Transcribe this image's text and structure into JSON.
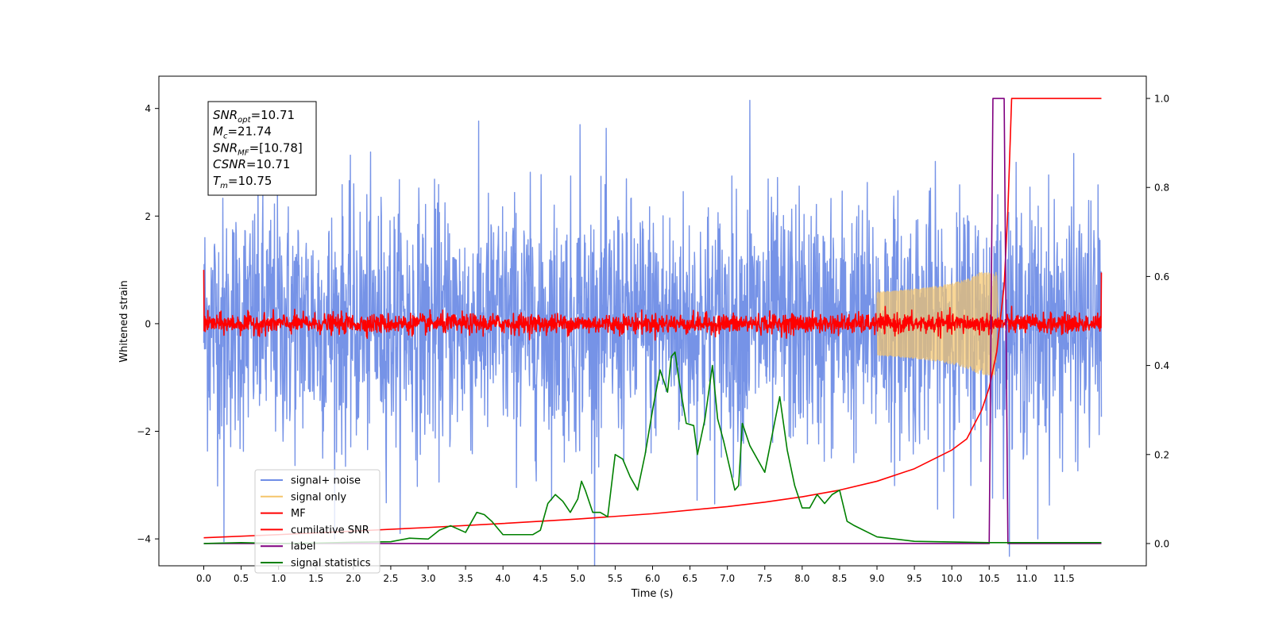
{
  "chart_data": {
    "type": "line",
    "xlabel": "Time (s)",
    "ylabel": "Whitened strain",
    "xlim": [
      -0.6,
      12.6
    ],
    "ylim": [
      -4.5,
      4.6
    ],
    "y2lim": [
      -0.05,
      1.05
    ],
    "x_ticks": [
      "0.0",
      "0.5",
      "1.0",
      "1.5",
      "2.0",
      "2.5",
      "3.0",
      "3.5",
      "4.0",
      "4.5",
      "5.0",
      "5.5",
      "6.0",
      "6.5",
      "7.0",
      "7.5",
      "8.0",
      "8.5",
      "9.0",
      "9.5",
      "10.0",
      "10.5",
      "11.0",
      "11.5"
    ],
    "y_ticks": [
      "4",
      "2",
      "0",
      "−2",
      "−4"
    ],
    "y2_ticks": [
      "1.0",
      "0.8",
      "0.6",
      "0.4",
      "0.2",
      "0.0"
    ],
    "grid": false,
    "legend_position": "lower-left",
    "annotation": {
      "lines": [
        {
          "sym": "SNR",
          "sub": "opt",
          "value": "=10.71"
        },
        {
          "sym": "M",
          "sub": "c",
          "value": "=21.74"
        },
        {
          "sym": "SNR",
          "sub": "MF",
          "value": "=[10.78]"
        },
        {
          "sym": "CSNR",
          "sub": "",
          "value": "=10.71"
        },
        {
          "sym": "T",
          "sub": "m",
          "value": "=10.75"
        }
      ]
    },
    "series": [
      {
        "name": "signal+ noise",
        "color": "#6f8de6",
        "axis": "left",
        "kind": "noise",
        "x_range": [
          0,
          12
        ],
        "std": 1.15,
        "notable_peaks": [
          [
            7.3,
            4.15
          ],
          [
            5.03,
            3.7
          ],
          [
            0.27,
            -4.05
          ],
          [
            11.15,
            -4.0
          ]
        ]
      },
      {
        "name": "signal only",
        "color": "#f5c56a",
        "axis": "left",
        "kind": "chirp",
        "peak_time": 10.6,
        "peak_amplitude": 0.95
      },
      {
        "name": "MF",
        "color": "#ff0000",
        "axis": "left",
        "kind": "noise",
        "x_range": [
          0,
          12
        ],
        "std": 0.09,
        "edge_values": [
          1.0,
          0.95
        ]
      },
      {
        "name": "cumilative SNR",
        "color": "#ff0000",
        "axis": "right",
        "x": [
          0.0,
          1.0,
          2.0,
          3.0,
          4.0,
          5.0,
          6.0,
          7.0,
          7.5,
          8.0,
          8.5,
          9.0,
          9.5,
          10.0,
          10.2,
          10.4,
          10.5,
          10.6,
          10.7,
          10.75,
          10.8,
          12.0
        ],
        "y": [
          0.013,
          0.02,
          0.028,
          0.036,
          0.045,
          0.055,
          0.067,
          0.083,
          0.093,
          0.105,
          0.12,
          0.14,
          0.168,
          0.21,
          0.235,
          0.3,
          0.35,
          0.43,
          0.58,
          0.75,
          1.0,
          1.0
        ]
      },
      {
        "name": "label",
        "color": "#800080",
        "axis": "right",
        "x": [
          0.0,
          10.5,
          10.55,
          10.7,
          10.75,
          12.0
        ],
        "y": [
          0.0,
          0.0,
          1.0,
          1.0,
          0.0,
          0.0
        ]
      },
      {
        "name": "signal statistics",
        "color": "#008000",
        "axis": "right",
        "x": [
          0.0,
          0.5,
          1.0,
          1.5,
          2.0,
          2.5,
          2.75,
          3.0,
          3.15,
          3.3,
          3.5,
          3.65,
          3.75,
          3.85,
          4.0,
          4.2,
          4.4,
          4.5,
          4.6,
          4.7,
          4.8,
          4.9,
          5.0,
          5.05,
          5.1,
          5.2,
          5.3,
          5.4,
          5.5,
          5.6,
          5.7,
          5.8,
          5.9,
          6.0,
          6.1,
          6.2,
          6.25,
          6.3,
          6.35,
          6.45,
          6.55,
          6.6,
          6.7,
          6.8,
          6.87,
          6.95,
          7.1,
          7.15,
          7.2,
          7.3,
          7.5,
          7.7,
          7.8,
          7.9,
          8.0,
          8.1,
          8.2,
          8.3,
          8.4,
          8.5,
          8.6,
          8.7,
          9.0,
          9.5,
          10.5,
          11.0,
          12.0
        ],
        "y": [
          0.0,
          0.002,
          0.0,
          0.001,
          0.003,
          0.004,
          0.012,
          0.01,
          0.03,
          0.04,
          0.025,
          0.07,
          0.065,
          0.05,
          0.02,
          0.02,
          0.02,
          0.03,
          0.09,
          0.11,
          0.095,
          0.07,
          0.1,
          0.14,
          0.12,
          0.07,
          0.07,
          0.06,
          0.2,
          0.19,
          0.15,
          0.12,
          0.2,
          0.3,
          0.39,
          0.34,
          0.42,
          0.43,
          0.37,
          0.27,
          0.265,
          0.2,
          0.28,
          0.4,
          0.28,
          0.23,
          0.12,
          0.13,
          0.27,
          0.22,
          0.16,
          0.33,
          0.21,
          0.13,
          0.08,
          0.08,
          0.11,
          0.09,
          0.11,
          0.12,
          0.05,
          0.04,
          0.015,
          0.005,
          0.002,
          0.002,
          0.002
        ]
      }
    ]
  }
}
